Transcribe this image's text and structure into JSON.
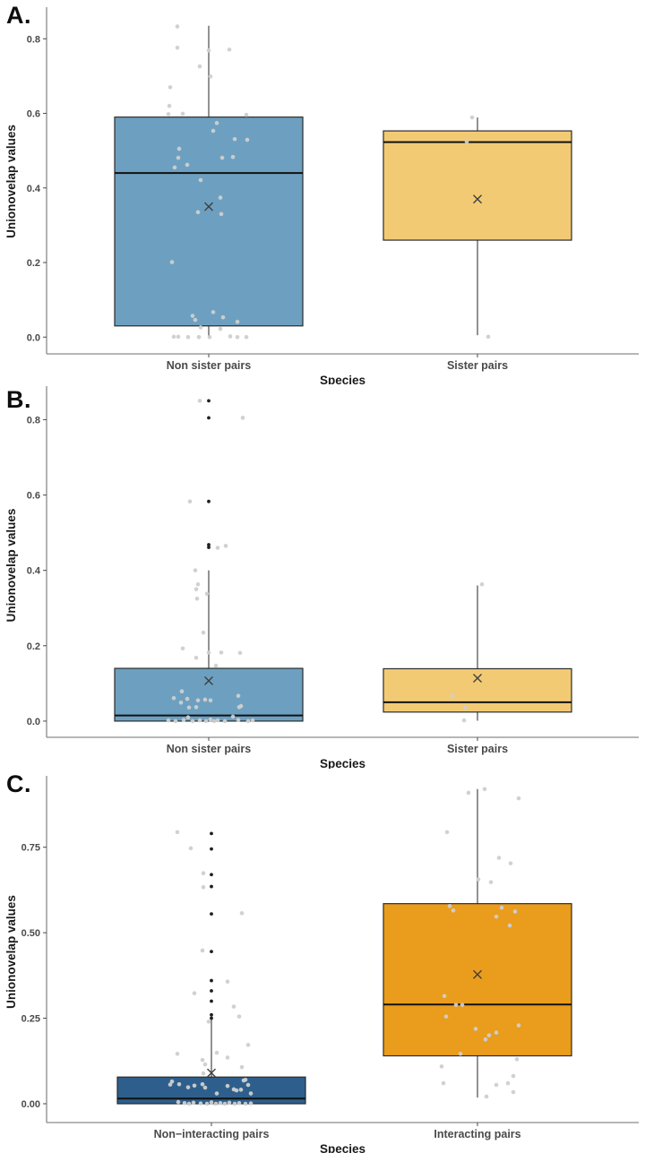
{
  "page": {
    "background": "#ffffff"
  },
  "colors": {
    "jitter_point": "#cfcfcf",
    "outlier_point": "#1f1f1f",
    "axis_line": "#8a8a8a",
    "tick_mark": "#4a4a4a",
    "mean_marker": "#3f3f3f",
    "box_border": "#2b2b2b",
    "median_line": "#111111",
    "whisker": "#4a4a4a"
  },
  "chart_data": [
    {
      "panel_label": "A.",
      "type": "box",
      "ylabel": "Unionovelap values",
      "xlabel": "Species",
      "yticks": [
        0,
        0.2,
        0.4,
        0.6,
        0.8
      ],
      "ytick_labels": [
        "0.0",
        "0.2",
        "0.4",
        "0.6",
        "0.8"
      ],
      "ylim": [
        -0.045,
        0.88
      ],
      "categories": [
        "Non sister pairs",
        "Sister pairs"
      ],
      "legend": "none",
      "grid": "off",
      "boxes": [
        {
          "category": "Non sister pairs",
          "fill": "#6da0c0",
          "q1": 0.03,
          "median": 0.44,
          "q3": 0.59,
          "whisker_low": 0.0,
          "whisker_high": 0.835,
          "mean": 0.35,
          "outliers": [],
          "points": [
            [
              -35,
              0.833
            ],
            [
              -35,
              0.776
            ],
            [
              0,
              0.769
            ],
            [
              23,
              0.771
            ],
            [
              -10,
              0.726
            ],
            [
              2,
              0.699
            ],
            [
              -43,
              0.67
            ],
            [
              -44,
              0.62
            ],
            [
              -45,
              0.598
            ],
            [
              -29,
              0.599
            ],
            [
              42,
              0.596
            ],
            [
              9,
              0.574
            ],
            [
              5,
              0.553
            ],
            [
              29,
              0.531
            ],
            [
              43,
              0.529
            ],
            [
              -33,
              0.505
            ],
            [
              -34,
              0.481
            ],
            [
              -38,
              0.455
            ],
            [
              -24,
              0.462
            ],
            [
              15,
              0.481
            ],
            [
              27,
              0.483
            ],
            [
              -9,
              0.421
            ],
            [
              13,
              0.374
            ],
            [
              -12,
              0.335
            ],
            [
              14,
              0.33
            ],
            [
              -41,
              0.201
            ],
            [
              -18,
              0.057
            ],
            [
              -15,
              0.046
            ],
            [
              5,
              0.067
            ],
            [
              16,
              0.053
            ],
            [
              32,
              0.041
            ],
            [
              -9,
              0.026
            ],
            [
              13,
              0.022
            ],
            [
              -39,
              0.001
            ],
            [
              -34,
              0.001
            ],
            [
              -23,
              0.0
            ],
            [
              -11,
              0.0
            ],
            [
              1,
              0.0
            ],
            [
              24,
              0.002
            ],
            [
              32,
              0.0
            ],
            [
              42,
              0.0
            ]
          ]
        },
        {
          "category": "Sister pairs",
          "fill": "#f3ca74",
          "q1": 0.26,
          "median": 0.523,
          "q3": 0.553,
          "whisker_low": 0.005,
          "whisker_high": 0.589,
          "mean": 0.37,
          "outliers": [],
          "points": [
            [
              -6,
              0.589
            ],
            [
              -12,
              0.524
            ],
            [
              12,
              0.001
            ]
          ]
        }
      ]
    },
    {
      "panel_label": "B.",
      "type": "box",
      "ylabel": "Unionovelap values",
      "xlabel": "Species",
      "yticks": [
        0,
        0.2,
        0.4,
        0.6,
        0.8
      ],
      "ytick_labels": [
        "0.0",
        "0.2",
        "0.4",
        "0.6",
        "0.8"
      ],
      "ylim": [
        -0.043,
        0.87
      ],
      "categories": [
        "Non sister pairs",
        "Sister pairs"
      ],
      "legend": "none",
      "grid": "off",
      "boxes": [
        {
          "category": "Non sister pairs",
          "fill": "#6da0c0",
          "q1": 0.0,
          "median": 0.015,
          "q3": 0.14,
          "whisker_low": 0.0,
          "whisker_high": 0.4,
          "mean": 0.107,
          "outliers": [
            [
              0,
              0.85
            ],
            [
              0,
              0.805
            ],
            [
              0,
              0.583
            ],
            [
              0,
              0.468
            ],
            [
              0,
              0.461
            ]
          ],
          "points": [
            [
              -10,
              0.85
            ],
            [
              38,
              0.805
            ],
            [
              -21,
              0.583
            ],
            [
              10,
              0.46
            ],
            [
              19,
              0.465
            ],
            [
              -15,
              0.4
            ],
            [
              -12,
              0.363
            ],
            [
              -14,
              0.35
            ],
            [
              -13,
              0.325
            ],
            [
              -2,
              0.338
            ],
            [
              -6,
              0.235
            ],
            [
              -29,
              0.193
            ],
            [
              0,
              0.182
            ],
            [
              14,
              0.182
            ],
            [
              35,
              0.181
            ],
            [
              -14,
              0.168
            ],
            [
              8,
              0.147
            ],
            [
              -30,
              0.079
            ],
            [
              -39,
              0.061
            ],
            [
              -31,
              0.049
            ],
            [
              -24,
              0.059
            ],
            [
              -22,
              0.036
            ],
            [
              -14,
              0.037
            ],
            [
              -12,
              0.055
            ],
            [
              -4,
              0.057
            ],
            [
              2,
              0.055
            ],
            [
              33,
              0.067
            ],
            [
              34,
              0.037
            ],
            [
              36,
              0.04
            ],
            [
              -45,
              0.002
            ],
            [
              -37,
              0.0
            ],
            [
              -28,
              0.003
            ],
            [
              -23,
              0.01
            ],
            [
              -18,
              0.0
            ],
            [
              -10,
              0.002
            ],
            [
              -3,
              0.0
            ],
            [
              2,
              0.004
            ],
            [
              6,
              0.0
            ],
            [
              10,
              0.002
            ],
            [
              18,
              0.0
            ],
            [
              27,
              0.012
            ],
            [
              33,
              0.003
            ],
            [
              44,
              0.0
            ],
            [
              49,
              0.002
            ]
          ]
        },
        {
          "category": "Sister pairs",
          "fill": "#f3ca74",
          "q1": 0.024,
          "median": 0.05,
          "q3": 0.139,
          "whisker_low": 0.001,
          "whisker_high": 0.36,
          "mean": 0.114,
          "outliers": [],
          "points": [
            [
              5,
              0.363
            ],
            [
              -28,
              0.067
            ],
            [
              -14,
              0.036
            ],
            [
              -15,
              0.002
            ]
          ]
        }
      ]
    },
    {
      "panel_label": "C.",
      "type": "box",
      "ylabel": "Unionovelap values",
      "xlabel": "Species",
      "yticks": [
        0,
        0.25,
        0.5,
        0.75
      ],
      "ytick_labels": [
        "0.00",
        "0.25",
        "0.50",
        "0.75"
      ],
      "ylim": [
        -0.055,
        0.943
      ],
      "categories": [
        "Non−interacting pairs",
        "Interacting pairs"
      ],
      "legend": "none",
      "grid": "off",
      "boxes": [
        {
          "category": "Non−interacting pairs",
          "fill": "#2e5f8c",
          "q1": 0.0,
          "median": 0.015,
          "q3": 0.078,
          "whisker_low": 0.0,
          "whisker_high": 0.25,
          "mean": 0.09,
          "outliers": [
            [
              0,
              0.79
            ],
            [
              0,
              0.745
            ],
            [
              0,
              0.67
            ],
            [
              0,
              0.635
            ],
            [
              0,
              0.555
            ],
            [
              0,
              0.445
            ],
            [
              0,
              0.36
            ],
            [
              0,
              0.33
            ],
            [
              0,
              0.3
            ],
            [
              0,
              0.26
            ],
            [
              0,
              0.25
            ]
          ],
          "points": [
            [
              -38,
              0.794
            ],
            [
              -23,
              0.747
            ],
            [
              -9,
              0.674
            ],
            [
              -9,
              0.633
            ],
            [
              34,
              0.557
            ],
            [
              -10,
              0.448
            ],
            [
              18,
              0.357
            ],
            [
              -19,
              0.323
            ],
            [
              25,
              0.284
            ],
            [
              31,
              0.255
            ],
            [
              -3,
              0.24
            ],
            [
              41,
              0.172
            ],
            [
              6,
              0.149
            ],
            [
              -38,
              0.146
            ],
            [
              18,
              0.135
            ],
            [
              -10,
              0.128
            ],
            [
              -7,
              0.115
            ],
            [
              34,
              0.107
            ],
            [
              -9,
              0.089
            ],
            [
              38,
              0.07
            ],
            [
              -46,
              0.056
            ],
            [
              -44,
              0.065
            ],
            [
              -36,
              0.057
            ],
            [
              -26,
              0.048
            ],
            [
              -19,
              0.053
            ],
            [
              -10,
              0.057
            ],
            [
              -7,
              0.047
            ],
            [
              6,
              0.03
            ],
            [
              18,
              0.052
            ],
            [
              25,
              0.042
            ],
            [
              28,
              0.039
            ],
            [
              33,
              0.041
            ],
            [
              36,
              0.068
            ],
            [
              41,
              0.055
            ],
            [
              44,
              0.03
            ],
            [
              -37,
              0.005
            ],
            [
              -30,
              0.002
            ],
            [
              -25,
              0.0
            ],
            [
              -20,
              0.003
            ],
            [
              -12,
              0.001
            ],
            [
              -5,
              0.0
            ],
            [
              0,
              0.004
            ],
            [
              5,
              0.0
            ],
            [
              10,
              0.002
            ],
            [
              15,
              0.0
            ],
            [
              20,
              0.003
            ],
            [
              26,
              0.0
            ],
            [
              31,
              0.002
            ],
            [
              38,
              0.0
            ],
            [
              44,
              0.001
            ]
          ]
        },
        {
          "category": "Interacting pairs",
          "fill": "#ea9c1c",
          "q1": 0.14,
          "median": 0.29,
          "q3": 0.585,
          "whisker_low": 0.018,
          "whisker_high": 0.92,
          "mean": 0.378,
          "outliers": [],
          "points": [
            [
              8,
              0.92
            ],
            [
              -10,
              0.909
            ],
            [
              46,
              0.893
            ],
            [
              -34,
              0.794
            ],
            [
              24,
              0.719
            ],
            [
              37,
              0.703
            ],
            [
              1,
              0.656
            ],
            [
              15,
              0.648
            ],
            [
              -31,
              0.578
            ],
            [
              -27,
              0.565
            ],
            [
              27,
              0.573
            ],
            [
              42,
              0.562
            ],
            [
              21,
              0.547
            ],
            [
              36,
              0.521
            ],
            [
              -37,
              0.315
            ],
            [
              -24,
              0.289
            ],
            [
              -17,
              0.289
            ],
            [
              -35,
              0.255
            ],
            [
              -2,
              0.219
            ],
            [
              46,
              0.229
            ],
            [
              21,
              0.208
            ],
            [
              13,
              0.2
            ],
            [
              9,
              0.188
            ],
            [
              -19,
              0.146
            ],
            [
              44,
              0.13
            ],
            [
              -40,
              0.109
            ],
            [
              40,
              0.081
            ],
            [
              -38,
              0.06
            ],
            [
              34,
              0.06
            ],
            [
              21,
              0.055
            ],
            [
              40,
              0.034
            ],
            [
              10,
              0.021
            ]
          ]
        }
      ]
    }
  ]
}
